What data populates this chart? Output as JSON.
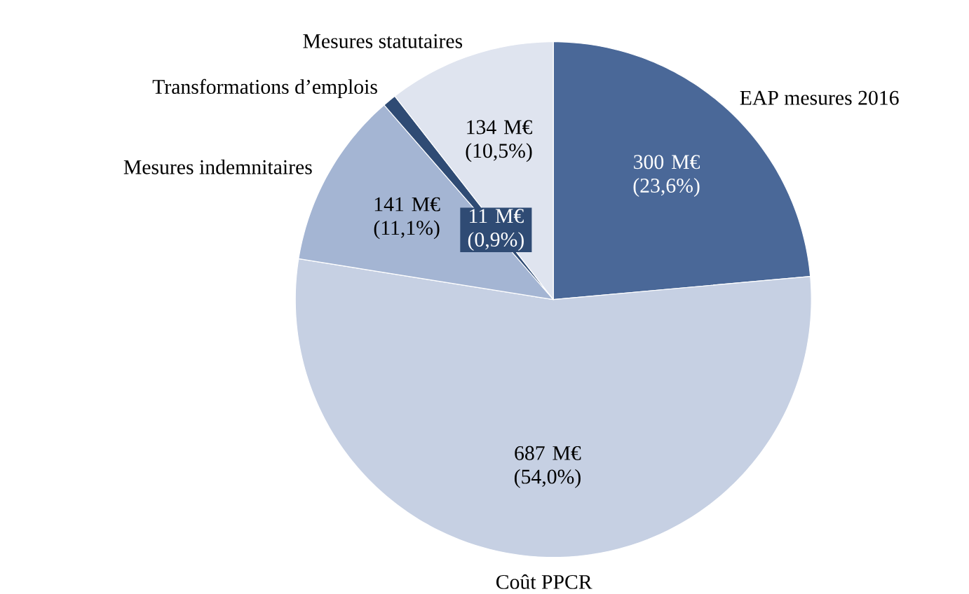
{
  "chart_data": {
    "type": "pie",
    "categories": [
      "EAP mesures 2016",
      "Coût PPCR",
      "Mesures indemnitaires",
      "Transformations d’emplois",
      "Mesures statutaires"
    ],
    "values": [
      300,
      687,
      141,
      11,
      134
    ],
    "value_labels": [
      "300 M€ (23,6%)",
      "687 M€ (54,0%)",
      "141 M€ (11,1%)",
      "11 M€ (0,9%)",
      "134 M€ (10,5%)"
    ],
    "colors": [
      "#4a6898",
      "#c6d0e3",
      "#a4b5d3",
      "#2f4b74",
      "#dfe4ef"
    ]
  }
}
